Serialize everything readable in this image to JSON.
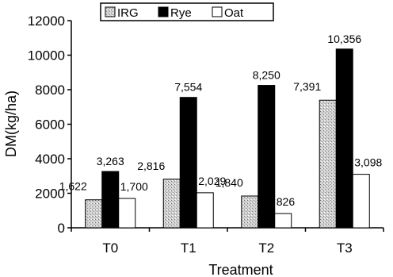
{
  "chart_data": {
    "type": "bar",
    "title": "",
    "xlabel": "Treatment",
    "ylabel": "DM(kg/ha)",
    "categories": [
      "T0",
      "T1",
      "T2",
      "T3"
    ],
    "ylim": [
      0,
      12000
    ],
    "yticks": [
      0,
      2000,
      4000,
      6000,
      8000,
      10000,
      12000
    ],
    "grid": false,
    "legend": "top",
    "series": [
      {
        "name": "IRG",
        "values": [
          1622,
          2816,
          1840,
          7391
        ],
        "labels": [
          "1,622",
          "2,816",
          "1,840",
          "7,391"
        ],
        "color": "#c8c8c8",
        "pattern": "stipple"
      },
      {
        "name": "Rye",
        "values": [
          3263,
          7554,
          8250,
          10356
        ],
        "labels": [
          "3,263",
          "7,554",
          "8,250",
          "10,356"
        ],
        "color": "#000000",
        "pattern": "solid"
      },
      {
        "name": "Oat",
        "values": [
          1700,
          2029,
          826,
          3098
        ],
        "labels": [
          "1,700",
          "2,029",
          "826",
          "3,098"
        ],
        "color": "#ffffff",
        "pattern": "solid"
      }
    ]
  }
}
